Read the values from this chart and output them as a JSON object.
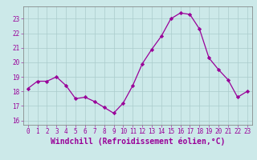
{
  "x": [
    0,
    1,
    2,
    3,
    4,
    5,
    6,
    7,
    8,
    9,
    10,
    11,
    12,
    13,
    14,
    15,
    16,
    17,
    18,
    19,
    20,
    21,
    22,
    23
  ],
  "y": [
    18.2,
    18.7,
    18.7,
    19.0,
    18.4,
    17.5,
    17.6,
    17.3,
    16.9,
    16.5,
    17.2,
    18.4,
    19.9,
    20.9,
    21.8,
    23.0,
    23.4,
    23.3,
    22.3,
    20.3,
    19.5,
    18.8,
    17.6,
    18.0
  ],
  "line_color": "#990099",
  "marker": "D",
  "markersize": 2.2,
  "linewidth": 0.9,
  "xlabel": "Windchill (Refroidissement éolien,°C)",
  "xlabel_fontsize": 7,
  "xlim": [
    -0.5,
    23.5
  ],
  "ylim": [
    15.7,
    23.85
  ],
  "yticks": [
    16,
    17,
    18,
    19,
    20,
    21,
    22,
    23
  ],
  "xticks": [
    0,
    1,
    2,
    3,
    4,
    5,
    6,
    7,
    8,
    9,
    10,
    11,
    12,
    13,
    14,
    15,
    16,
    17,
    18,
    19,
    20,
    21,
    22,
    23
  ],
  "tick_fontsize": 5.5,
  "bg_color": "#cce9e9",
  "grid_color": "#aacccc",
  "spine_color": "#7a7a7a"
}
